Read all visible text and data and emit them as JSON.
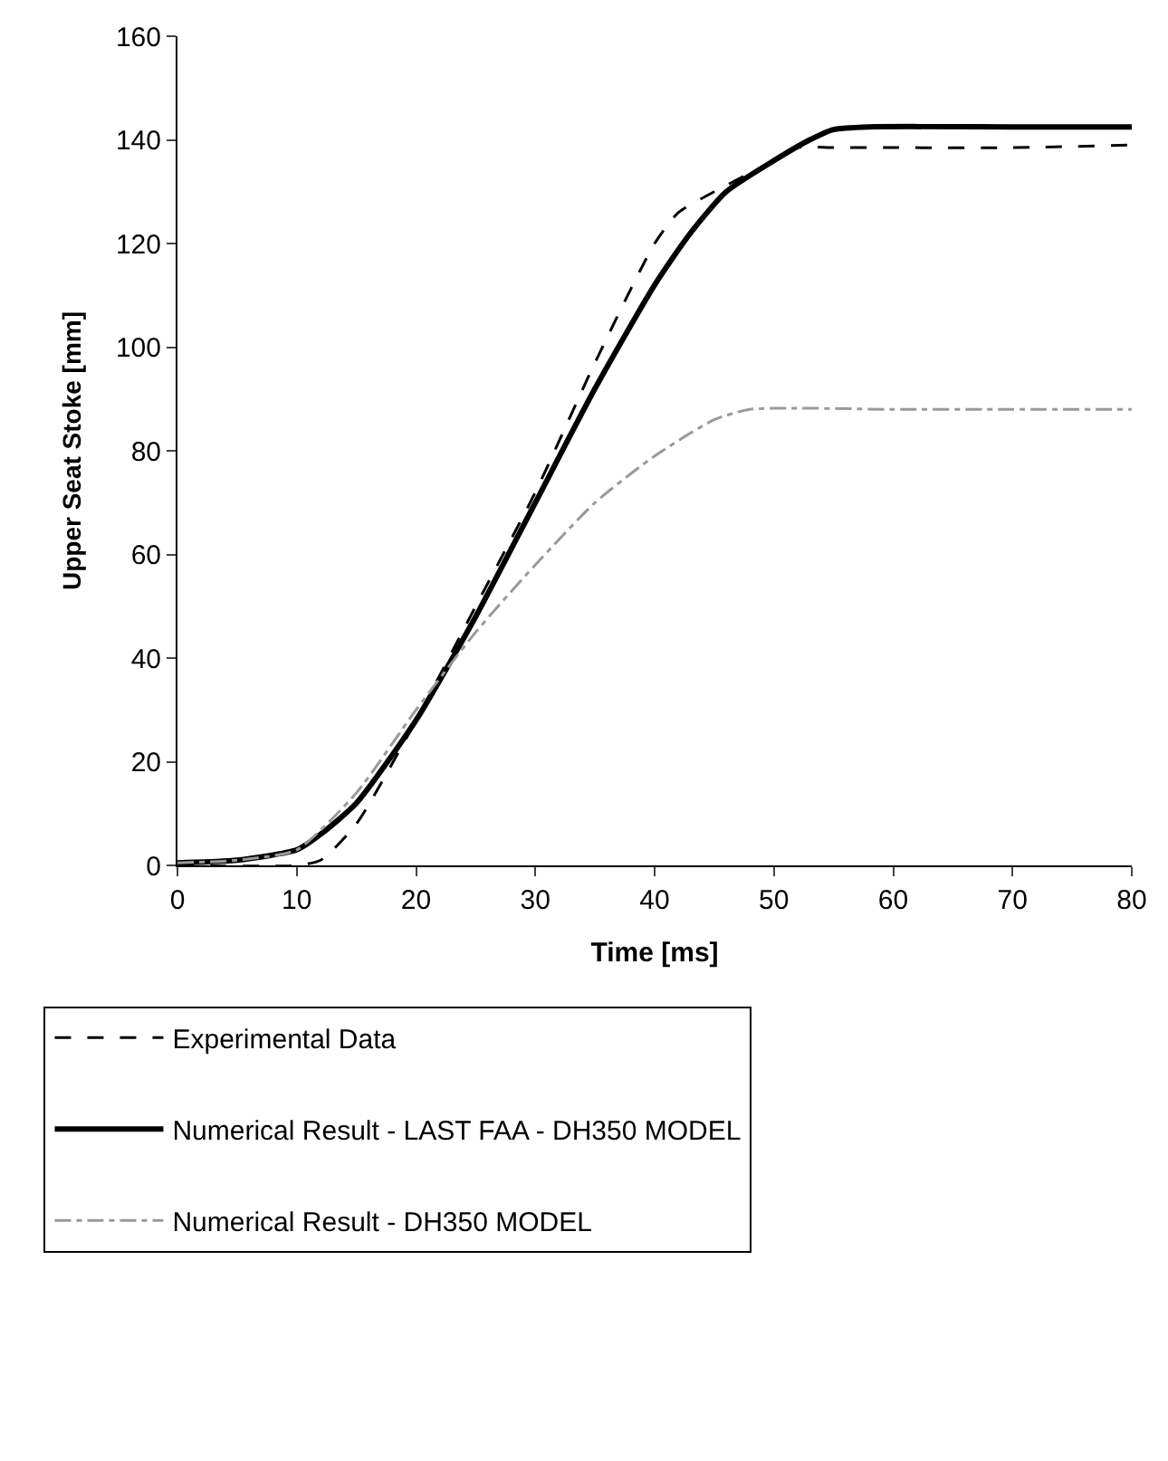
{
  "chart_data": {
    "type": "line",
    "xlabel": "Time [ms]",
    "ylabel": "Upper Seat Stoke [mm]",
    "xlim": [
      0,
      80
    ],
    "xticks": [
      0,
      10,
      20,
      30,
      40,
      50,
      60,
      70,
      80
    ],
    "ylim": [
      0,
      160
    ],
    "yticks": [
      0,
      20,
      40,
      60,
      80,
      100,
      120,
      140,
      160
    ],
    "legend": "bottom",
    "marker": "none",
    "series": [
      {
        "name": "Experimental Data",
        "color": "#000000",
        "line_style": "dashed",
        "x": [
          0,
          10,
          12,
          15,
          20,
          25,
          30,
          35,
          40,
          42,
          45,
          50,
          52,
          55,
          60,
          70,
          80
        ],
        "values": [
          0,
          0,
          1,
          8,
          28,
          50,
          72,
          97,
          120,
          126,
          130,
          136,
          138.5,
          138.5,
          138.5,
          138.5,
          139
        ]
      },
      {
        "name": "Numerical Result - LAST FAA - DH350 MODEL",
        "color": "#000000",
        "line_style": "solid",
        "x": [
          0,
          5,
          10,
          12,
          15,
          20,
          25,
          30,
          35,
          40,
          43,
          46,
          50,
          53,
          55,
          58,
          70,
          80
        ],
        "values": [
          0.5,
          1,
          3,
          6,
          12,
          28,
          48,
          70,
          92,
          112,
          122,
          130,
          136,
          140,
          142,
          142.5,
          142.5,
          142.5
        ]
      },
      {
        "name": "Numerical Result - DH350 MODEL",
        "color": "#999999",
        "line_style": "dashdot",
        "x": [
          0,
          5,
          10,
          15,
          20,
          25,
          30,
          35,
          40,
          45,
          48,
          60,
          70,
          80
        ],
        "values": [
          0.5,
          1,
          3,
          14,
          30,
          45,
          58,
          70,
          79,
          86,
          88,
          88,
          88,
          88
        ]
      }
    ]
  }
}
